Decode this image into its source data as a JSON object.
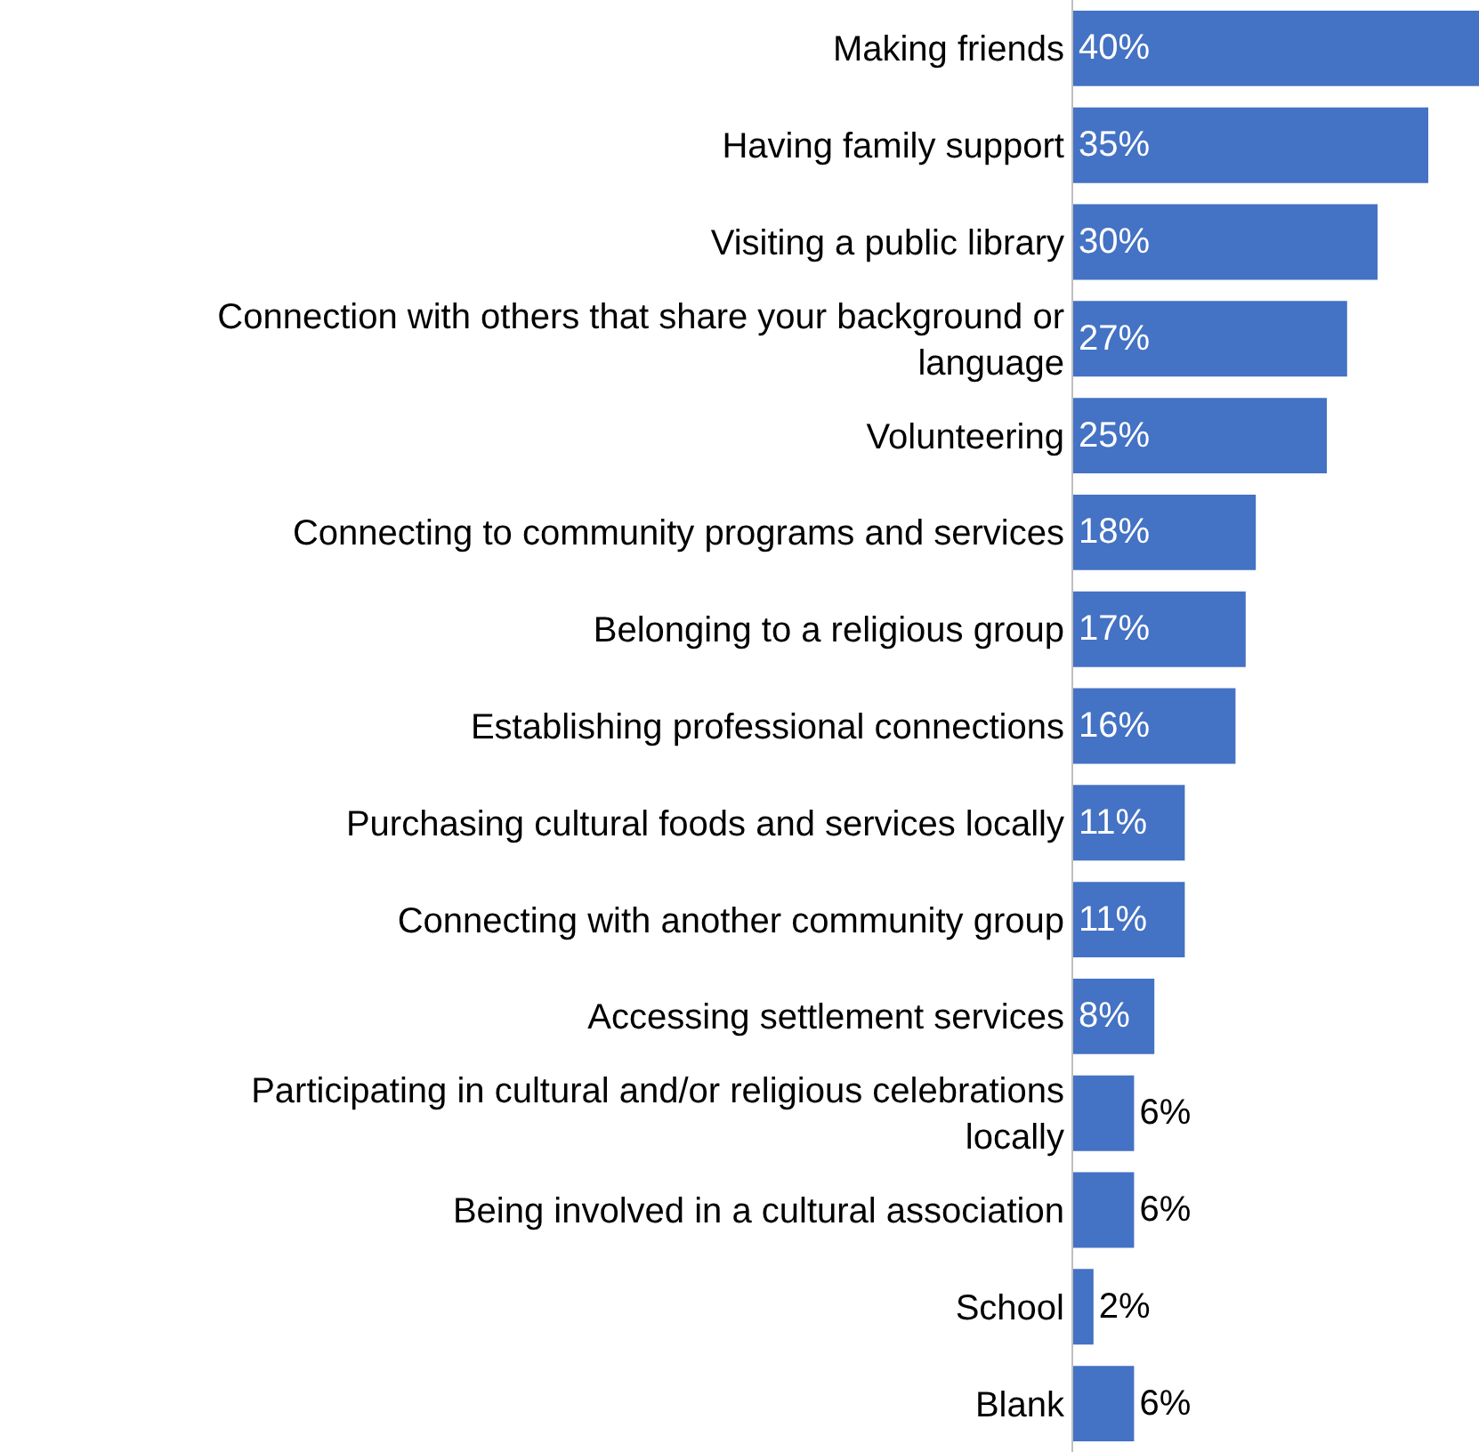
{
  "chart_data": {
    "type": "bar",
    "orientation": "horizontal",
    "relative": false,
    "categories": [
      "Making friends",
      "Having family support",
      "Visiting a public library",
      "Connection with others that share your background or language",
      "Volunteering",
      "Connecting to community programs and services",
      "Belonging to a religious group",
      "Establishing professional connections",
      "Purchasing cultural foods and services locally",
      "Connecting with another community group",
      "Accessing settlement services",
      "Participating in cultural and/or religious celebrations locally",
      "Being involved in a cultural association",
      "School",
      "Blank"
    ],
    "values": [
      40,
      35,
      30,
      27,
      25,
      18,
      17,
      16,
      11,
      11,
      8,
      6,
      6,
      2,
      6
    ],
    "value_labels": [
      "40%",
      "35%",
      "30%",
      "27%",
      "25%",
      "18%",
      "17%",
      "16%",
      "11%",
      "11%",
      "8%",
      "6%",
      "6%",
      "2%",
      "6%"
    ],
    "color": "#4472c4"
  }
}
